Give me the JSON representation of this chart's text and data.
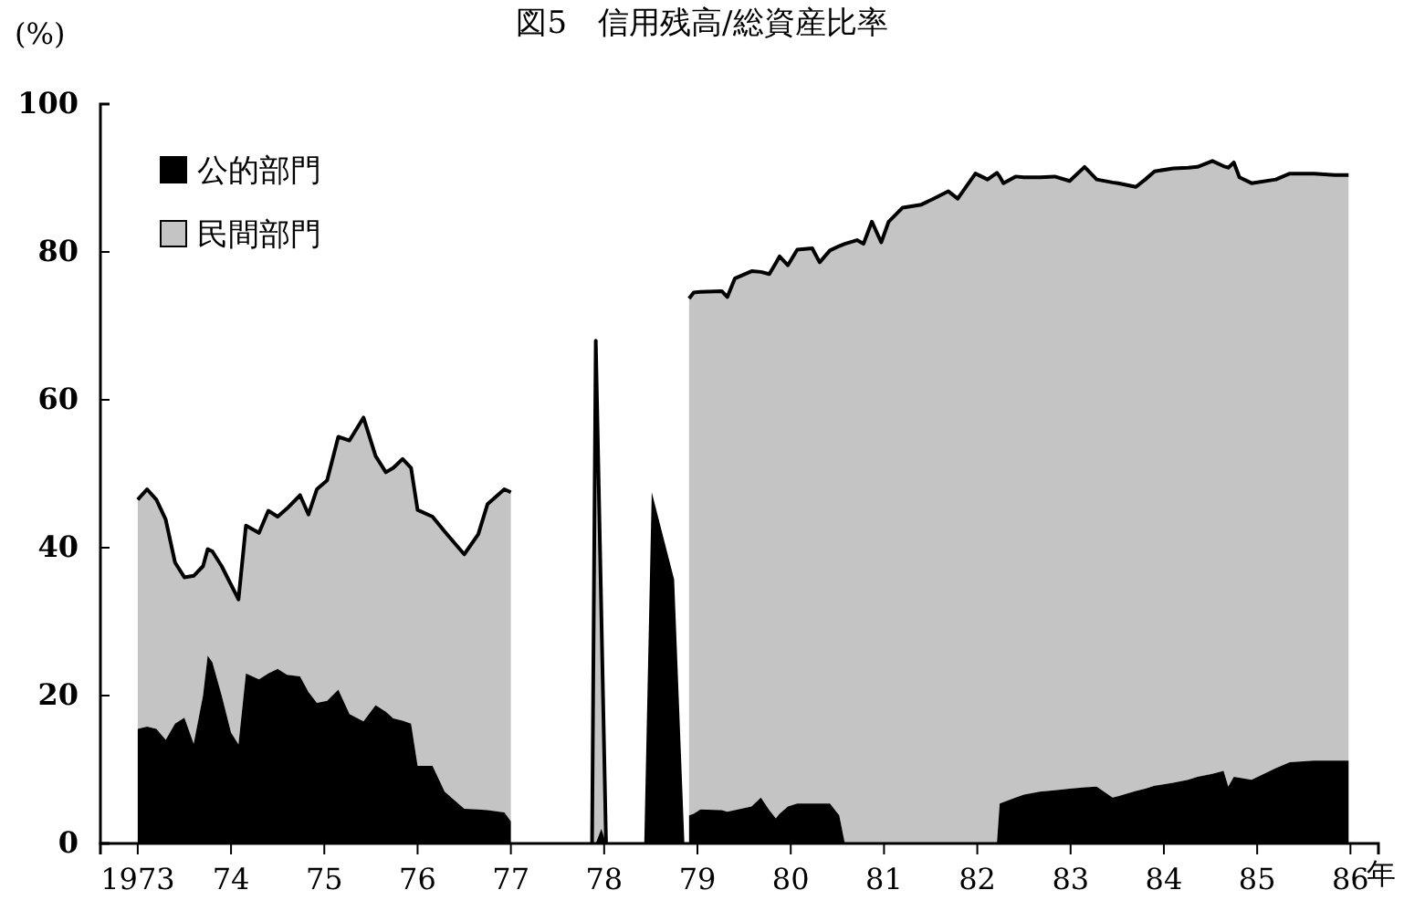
{
  "chart_data": {
    "type": "area",
    "stacked": true,
    "title": "図5　信用残高/総資産比率",
    "ylabel": "(%)",
    "xlabel": "年",
    "legend": "top left",
    "xlim": [
      1972.6,
      1986.3
    ],
    "ylim": [
      0,
      100
    ],
    "xticks": [
      {
        "value": 1973,
        "label": "1973"
      },
      {
        "value": 1974,
        "label": "74"
      },
      {
        "value": 1975,
        "label": "75"
      },
      {
        "value": 1976,
        "label": "76"
      },
      {
        "value": 1977,
        "label": "77"
      },
      {
        "value": 1978,
        "label": "78"
      },
      {
        "value": 1979,
        "label": "79"
      },
      {
        "value": 1980,
        "label": "80"
      },
      {
        "value": 1981,
        "label": "81"
      },
      {
        "value": 1982,
        "label": "82"
      },
      {
        "value": 1983,
        "label": "83"
      },
      {
        "value": 1984,
        "label": "84"
      },
      {
        "value": 1985,
        "label": "85"
      },
      {
        "value": 1986,
        "label": "86"
      }
    ],
    "yticks": [
      0,
      20,
      40,
      60,
      80,
      100
    ],
    "x": [
      1973.0,
      1973.1,
      1973.2,
      1973.3,
      1973.4,
      1973.5,
      1973.6,
      1973.7,
      1973.75,
      1973.8,
      1973.9,
      1974.0,
      1974.08,
      1974.16,
      1974.3,
      1974.4,
      1974.5,
      1974.6,
      1974.74,
      1974.83,
      1974.92,
      1975.03,
      1975.15,
      1975.27,
      1975.42,
      1975.55,
      1975.66,
      1975.74,
      1975.84,
      1975.93,
      1976.0,
      1976.16,
      1976.29,
      1976.5,
      1976.65,
      1976.75,
      1976.93,
      1977.0,
      1977.4,
      1977.87,
      1977.91,
      1977.97,
      1978.02,
      1978.2,
      1978.43,
      1978.51,
      1978.75,
      1978.86,
      1978.89,
      1978.91,
      1978.96,
      1979.03,
      1979.26,
      1979.32,
      1979.4,
      1979.58,
      1979.68,
      1979.77,
      1979.84,
      1979.88,
      1979.97,
      1980.07,
      1980.23,
      1980.31,
      1980.42,
      1980.52,
      1980.58,
      1980.71,
      1980.78,
      1980.87,
      1980.97,
      1981.05,
      1981.2,
      1981.4,
      1981.53,
      1981.69,
      1981.79,
      1981.98,
      1982.11,
      1982.21,
      1982.24,
      1982.28,
      1982.41,
      1982.5,
      1982.67,
      1982.83,
      1982.99,
      1983.15,
      1983.28,
      1983.45,
      1983.51,
      1983.7,
      1983.8,
      1983.9,
      1984.1,
      1984.26,
      1984.36,
      1984.52,
      1984.64,
      1984.69,
      1984.75,
      1984.81,
      1984.94,
      1985.2,
      1985.35,
      1985.61,
      1985.83,
      1985.98
    ],
    "series": [
      {
        "name": "公的部門",
        "color": "#000000",
        "values": [
          15.5,
          15.8,
          15.5,
          14.0,
          16.2,
          17.0,
          13.5,
          20,
          25.4,
          24.5,
          20,
          15,
          13.4,
          23.0,
          22.2,
          23,
          23.6,
          22.8,
          22.6,
          20.5,
          19,
          19.3,
          20.8,
          17.5,
          16.5,
          18.7,
          17.8,
          16.9,
          16.6,
          16.2,
          10.5,
          10.5,
          7,
          4.7,
          4.6,
          4.5,
          4.2,
          3,
          null,
          0,
          0,
          2,
          0,
          null,
          0,
          47.5,
          35.7,
          0,
          null,
          3.8,
          4.0,
          4.6,
          4.5,
          4.3,
          4.5,
          5.0,
          6.2,
          4.5,
          3.4,
          4,
          5,
          5.4,
          5.4,
          5.4,
          5.4,
          3.8,
          0,
          0,
          0,
          0,
          0,
          0,
          0,
          0,
          0,
          0,
          0,
          0,
          0,
          0,
          5.4,
          5.6,
          6.2,
          6.6,
          7.0,
          7.2,
          7.4,
          7.6,
          7.7,
          6.2,
          6.4,
          7.1,
          7.4,
          7.8,
          8.2,
          8.6,
          9.0,
          9.4,
          9.8,
          7.7,
          9.0,
          8.9,
          8.6,
          10.2,
          11.0,
          11.2,
          11.2,
          11.2
        ]
      },
      {
        "name": "民間部門",
        "color": "#c4c4c4",
        "values": [
          31.0,
          32.1,
          31.0,
          29.8,
          21.8,
          19.0,
          22.7,
          17.5,
          14.4,
          15.0,
          17.5,
          20.0,
          19.6,
          20.0,
          19.8,
          22.0,
          20.6,
          22.5,
          24.5,
          24.0,
          28.9,
          29.8,
          34.2,
          37.0,
          41.1,
          33.7,
          32.4,
          33.9,
          35.4,
          34.6,
          34.6,
          33.7,
          35.2,
          34.4,
          37.2,
          41.4,
          43.7,
          44.5,
          null,
          0,
          68,
          29,
          0,
          null,
          null,
          null,
          null,
          null,
          null,
          69.9,
          70.5,
          70.0,
          70.2,
          69.6,
          71.9,
          72.4,
          71.1,
          72.5,
          75.1,
          75.4,
          73.2,
          74.9,
          75.1,
          73.2,
          74.8,
          77.0,
          81.1,
          81.6,
          81.1,
          84.1,
          81.3,
          84.1,
          86.0,
          86.4,
          87.2,
          88.2,
          87.2,
          90.6,
          89.8,
          90.7,
          84.8,
          83.7,
          84.0,
          83.5,
          83.1,
          83.0,
          82.2,
          83.9,
          82.1,
          83.2,
          82.9,
          81.7,
          82.4,
          83.1,
          83.1,
          82.8,
          82.5,
          82.9,
          81.8,
          83.7,
          83.1,
          81.2,
          80.7,
          79.6,
          79.6,
          79.4,
          79.2,
          79.2
        ]
      }
    ]
  }
}
